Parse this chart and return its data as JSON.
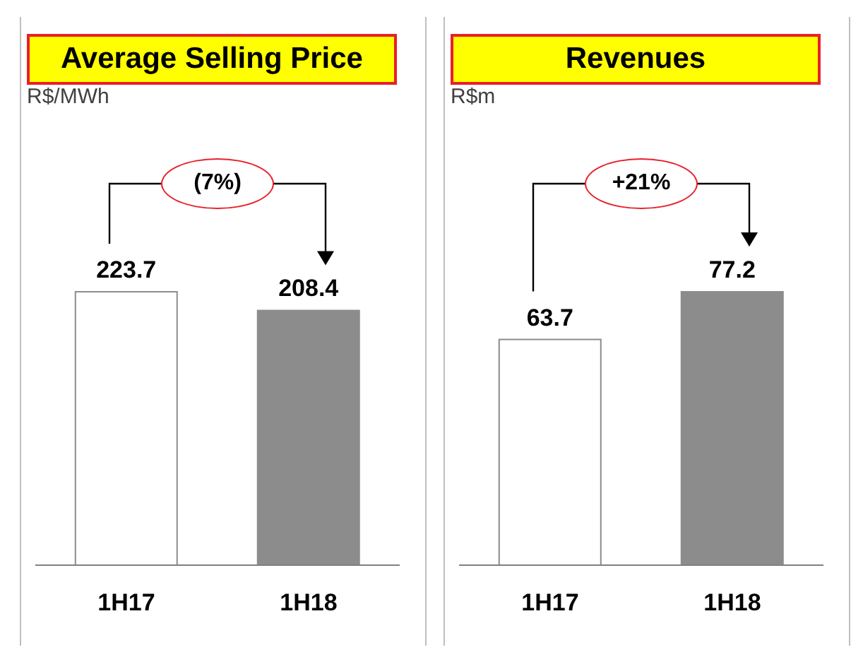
{
  "chart_data": [
    {
      "type": "bar",
      "title": "Average Selling Price",
      "ylabel": "R$/MWh",
      "categories": [
        "1H17",
        "1H18"
      ],
      "values": [
        223.7,
        208.4
      ],
      "colors": [
        "#ffffff",
        "#8c8c8c"
      ],
      "data_labels": true,
      "annotations": [
        "(7%)"
      ]
    },
    {
      "type": "bar",
      "title": "Revenues",
      "ylabel": "R$m",
      "categories": [
        "1H17",
        "1H18"
      ],
      "values": [
        63.7,
        77.2
      ],
      "colors": [
        "#ffffff",
        "#8c8c8c"
      ],
      "data_labels": true,
      "annotations": [
        "+21%"
      ]
    }
  ]
}
